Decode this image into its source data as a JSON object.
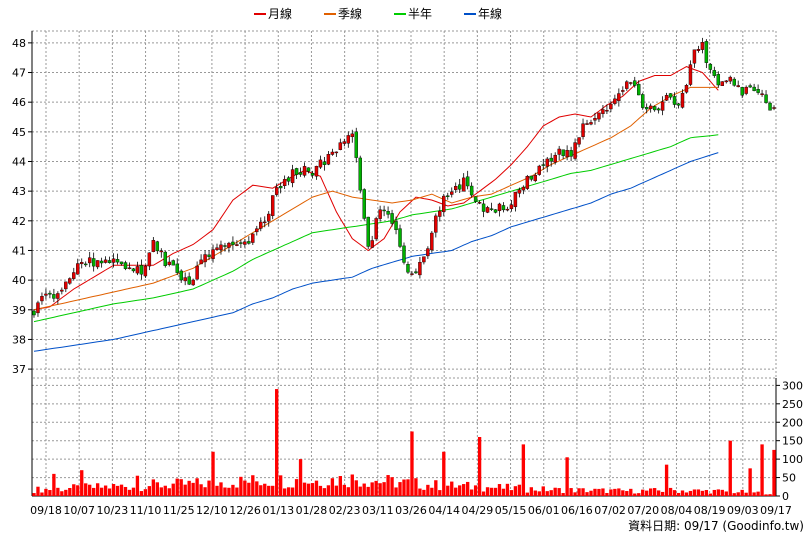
{
  "chart_data": {
    "type": "candlestick",
    "legend": [
      {
        "label": "月線",
        "color": "#e00000"
      },
      {
        "label": "季線",
        "color": "#e06000"
      },
      {
        "label": "半年",
        "color": "#00cc00"
      },
      {
        "label": "年線",
        "color": "#0050c8"
      }
    ],
    "price_axis": {
      "ticks": [
        37,
        38,
        39,
        40,
        41,
        42,
        43,
        44,
        45,
        46,
        47,
        48
      ],
      "range": [
        36.7,
        48.4
      ]
    },
    "volume_axis": {
      "ticks": [
        0,
        50,
        100,
        150,
        200,
        250,
        300
      ],
      "range": [
        0,
        320
      ]
    },
    "x_labels": [
      "09/18",
      "10/07",
      "10/23",
      "11/10",
      "11/25",
      "12/10",
      "12/26",
      "01/13",
      "01/28",
      "02/23",
      "03/11",
      "03/26",
      "04/14",
      "04/29",
      "05/15",
      "06/01",
      "06/16",
      "07/02",
      "07/20",
      "08/04",
      "08/19",
      "09/03",
      "09/17"
    ],
    "source_label": "資料日期: 09/17  (Goodinfo.tw)",
    "colors": {
      "up": "#e00000",
      "down": "#00b000",
      "volume": "#ff0000",
      "grid": "#999999"
    },
    "moving_averages": {
      "month": [
        [
          0,
          39.0
        ],
        [
          4,
          39.1
        ],
        [
          10,
          39.7
        ],
        [
          15,
          40.1
        ],
        [
          20,
          40.5
        ],
        [
          25,
          40.5
        ],
        [
          30,
          40.5
        ],
        [
          35,
          40.9
        ],
        [
          40,
          41.2
        ],
        [
          45,
          41.7
        ],
        [
          50,
          42.7
        ],
        [
          55,
          43.2
        ],
        [
          60,
          43.1
        ],
        [
          65,
          43.5
        ],
        [
          68,
          43.7
        ],
        [
          72,
          43.5
        ],
        [
          76,
          42.3
        ],
        [
          80,
          41.4
        ],
        [
          84,
          41.0
        ],
        [
          88,
          41.4
        ],
        [
          92,
          42.3
        ],
        [
          96,
          42.8
        ],
        [
          100,
          42.7
        ],
        [
          104,
          42.5
        ],
        [
          108,
          42.6
        ],
        [
          112,
          43.0
        ],
        [
          116,
          43.4
        ],
        [
          120,
          43.9
        ],
        [
          124,
          44.5
        ],
        [
          128,
          45.2
        ],
        [
          132,
          45.5
        ],
        [
          136,
          45.6
        ],
        [
          140,
          45.5
        ],
        [
          144,
          45.9
        ],
        [
          148,
          46.2
        ],
        [
          152,
          46.7
        ],
        [
          156,
          46.9
        ],
        [
          160,
          46.9
        ],
        [
          164,
          47.2
        ],
        [
          168,
          47.0
        ],
        [
          172,
          46.4
        ]
      ],
      "quarter": [
        [
          0,
          39.0
        ],
        [
          10,
          39.3
        ],
        [
          20,
          39.6
        ],
        [
          30,
          39.9
        ],
        [
          40,
          40.4
        ],
        [
          50,
          41.2
        ],
        [
          55,
          41.6
        ],
        [
          60,
          42.0
        ],
        [
          65,
          42.4
        ],
        [
          70,
          42.8
        ],
        [
          75,
          43.0
        ],
        [
          80,
          42.8
        ],
        [
          85,
          42.7
        ],
        [
          90,
          42.6
        ],
        [
          95,
          42.7
        ],
        [
          100,
          42.9
        ],
        [
          105,
          42.6
        ],
        [
          110,
          42.8
        ],
        [
          115,
          42.9
        ],
        [
          120,
          43.2
        ],
        [
          125,
          43.5
        ],
        [
          130,
          43.9
        ],
        [
          135,
          44.2
        ],
        [
          140,
          44.5
        ],
        [
          145,
          44.8
        ],
        [
          150,
          45.2
        ],
        [
          155,
          45.8
        ],
        [
          160,
          46.2
        ],
        [
          165,
          46.5
        ],
        [
          172,
          46.5
        ]
      ],
      "half": [
        [
          0,
          38.6
        ],
        [
          10,
          38.9
        ],
        [
          20,
          39.2
        ],
        [
          30,
          39.4
        ],
        [
          40,
          39.7
        ],
        [
          50,
          40.3
        ],
        [
          55,
          40.7
        ],
        [
          60,
          41.0
        ],
        [
          65,
          41.3
        ],
        [
          70,
          41.6
        ],
        [
          75,
          41.7
        ],
        [
          80,
          41.8
        ],
        [
          85,
          41.9
        ],
        [
          90,
          42.0
        ],
        [
          95,
          42.2
        ],
        [
          100,
          42.3
        ],
        [
          105,
          42.4
        ],
        [
          110,
          42.6
        ],
        [
          115,
          42.8
        ],
        [
          120,
          43.0
        ],
        [
          125,
          43.2
        ],
        [
          130,
          43.4
        ],
        [
          135,
          43.6
        ],
        [
          140,
          43.7
        ],
        [
          145,
          43.9
        ],
        [
          150,
          44.1
        ],
        [
          155,
          44.3
        ],
        [
          160,
          44.5
        ],
        [
          165,
          44.8
        ],
        [
          172,
          44.9
        ]
      ],
      "year": [
        [
          0,
          37.6
        ],
        [
          10,
          37.8
        ],
        [
          20,
          38.0
        ],
        [
          30,
          38.3
        ],
        [
          40,
          38.6
        ],
        [
          50,
          38.9
        ],
        [
          55,
          39.2
        ],
        [
          60,
          39.4
        ],
        [
          65,
          39.7
        ],
        [
          70,
          39.9
        ],
        [
          75,
          40.0
        ],
        [
          80,
          40.1
        ],
        [
          85,
          40.4
        ],
        [
          90,
          40.6
        ],
        [
          95,
          40.8
        ],
        [
          100,
          40.9
        ],
        [
          105,
          41.0
        ],
        [
          110,
          41.3
        ],
        [
          115,
          41.5
        ],
        [
          120,
          41.8
        ],
        [
          125,
          42.0
        ],
        [
          130,
          42.2
        ],
        [
          135,
          42.4
        ],
        [
          140,
          42.6
        ],
        [
          145,
          42.9
        ],
        [
          150,
          43.1
        ],
        [
          155,
          43.4
        ],
        [
          160,
          43.7
        ],
        [
          165,
          44.0
        ],
        [
          172,
          44.3
        ]
      ]
    },
    "price_path": [
      [
        0,
        39.0
      ],
      [
        3,
        39.5
      ],
      [
        6,
        39.4
      ],
      [
        9,
        40.2
      ],
      [
        12,
        40.6
      ],
      [
        16,
        40.6
      ],
      [
        20,
        40.7
      ],
      [
        24,
        40.5
      ],
      [
        27,
        40.2
      ],
      [
        30,
        41.4
      ],
      [
        33,
        40.6
      ],
      [
        36,
        40.3
      ],
      [
        39,
        39.8
      ],
      [
        42,
        40.7
      ],
      [
        46,
        41.0
      ],
      [
        50,
        41.2
      ],
      [
        54,
        41.4
      ],
      [
        56,
        41.7
      ],
      [
        58,
        41.9
      ],
      [
        61,
        43.1
      ],
      [
        64,
        43.5
      ],
      [
        67,
        43.7
      ],
      [
        70,
        43.7
      ],
      [
        73,
        44.0
      ],
      [
        76,
        44.4
      ],
      [
        78,
        44.7
      ],
      [
        80,
        45.0
      ],
      [
        82,
        43.0
      ],
      [
        84,
        41.0
      ],
      [
        86,
        42.0
      ],
      [
        88,
        42.4
      ],
      [
        91,
        41.8
      ],
      [
        94,
        40.2
      ],
      [
        97,
        40.5
      ],
      [
        99,
        41.2
      ],
      [
        102,
        42.5
      ],
      [
        105,
        43.0
      ],
      [
        108,
        43.3
      ],
      [
        111,
        42.6
      ],
      [
        114,
        42.3
      ],
      [
        117,
        42.5
      ],
      [
        120,
        42.6
      ],
      [
        123,
        43.3
      ],
      [
        126,
        43.6
      ],
      [
        129,
        44.1
      ],
      [
        132,
        44.3
      ],
      [
        135,
        44.2
      ],
      [
        138,
        45.2
      ],
      [
        141,
        45.5
      ],
      [
        144,
        45.8
      ],
      [
        147,
        46.2
      ],
      [
        150,
        46.7
      ],
      [
        153,
        45.9
      ],
      [
        156,
        45.7
      ],
      [
        159,
        46.3
      ],
      [
        162,
        45.8
      ],
      [
        164,
        46.6
      ],
      [
        166,
        47.6
      ],
      [
        168,
        47.9
      ],
      [
        170,
        47.0
      ],
      [
        172,
        46.7
      ],
      [
        175,
        46.8
      ],
      [
        178,
        46.3
      ],
      [
        181,
        46.5
      ],
      [
        184,
        46.0
      ],
      [
        186,
        45.8
      ]
    ],
    "volume_path": [
      [
        0,
        20
      ],
      [
        10,
        25
      ],
      [
        20,
        30
      ],
      [
        30,
        35
      ],
      [
        40,
        38
      ],
      [
        50,
        45
      ],
      [
        60,
        50
      ],
      [
        70,
        48
      ],
      [
        80,
        55
      ],
      [
        90,
        45
      ],
      [
        100,
        35
      ],
      [
        110,
        30
      ],
      [
        120,
        25
      ],
      [
        130,
        20
      ],
      [
        140,
        18
      ],
      [
        150,
        16
      ],
      [
        160,
        18
      ],
      [
        170,
        16
      ],
      [
        186,
        10
      ]
    ],
    "volume_spikes": [
      [
        5,
        60
      ],
      [
        12,
        70
      ],
      [
        26,
        55
      ],
      [
        45,
        120
      ],
      [
        61,
        290
      ],
      [
        67,
        100
      ],
      [
        95,
        175
      ],
      [
        103,
        120
      ],
      [
        112,
        160
      ],
      [
        123,
        140
      ],
      [
        134,
        105
      ],
      [
        159,
        85
      ],
      [
        175,
        150
      ],
      [
        180,
        75
      ],
      [
        183,
        140
      ],
      [
        186,
        125
      ]
    ]
  }
}
